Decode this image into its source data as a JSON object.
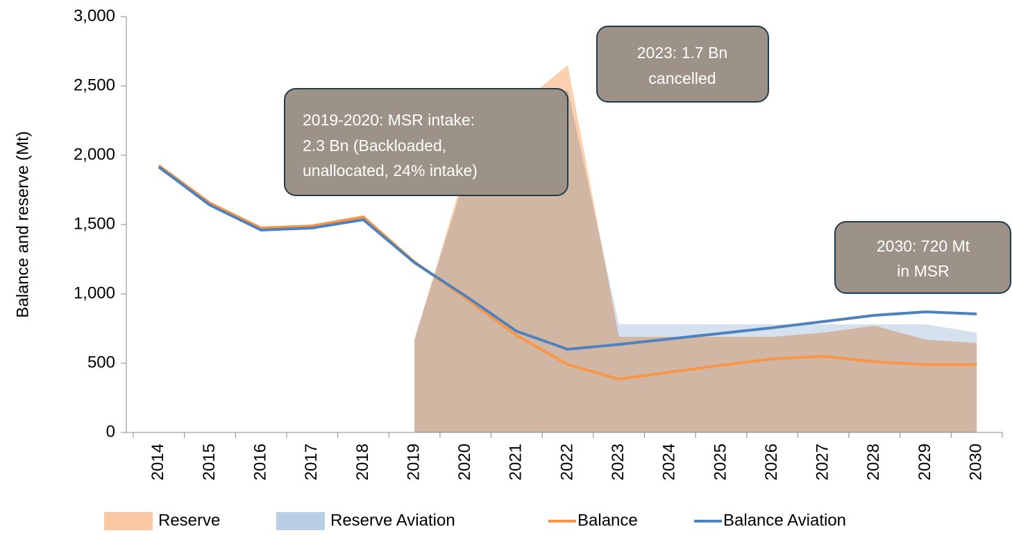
{
  "chart_data": {
    "type": "line",
    "y_label": "Balance and reserve (Mt)",
    "categories": [
      "2014",
      "2015",
      "2016",
      "2017",
      "2018",
      "2019",
      "2020",
      "2021",
      "2022",
      "2023",
      "2024",
      "2025",
      "2026",
      "2027",
      "2028",
      "2029",
      "2030"
    ],
    "ylim": [
      0,
      3000
    ],
    "yticks": [
      0,
      500,
      {
        "value": 1000,
        "label": "1,000"
      },
      {
        "value": 1500,
        "label": "1,500"
      },
      {
        "value": 2000,
        "label": "2,000"
      },
      {
        "value": 2500,
        "label": "2,500"
      },
      {
        "value": 3000,
        "label": "3,000"
      }
    ],
    "series": [
      {
        "name": "Reserve",
        "kind": "area",
        "color": "#fac8a0",
        "values": [
          null,
          null,
          null,
          null,
          null,
          670,
          1900,
          2350,
          2650,
          690,
          690,
          690,
          690,
          720,
          770,
          670,
          645
        ]
      },
      {
        "name": "Reserve Aviation",
        "kind": "area",
        "color": "#b9cde5",
        "values": [
          null,
          null,
          null,
          null,
          null,
          670,
          1850,
          2300,
          2470,
          780,
          780,
          780,
          780,
          780,
          780,
          780,
          720
        ]
      },
      {
        "name": "Balance",
        "kind": "line",
        "color": "#f79646",
        "values": [
          1925,
          1655,
          1475,
          1490,
          1555,
          1230,
          970,
          700,
          490,
          385,
          435,
          485,
          530,
          550,
          510,
          490,
          490
        ]
      },
      {
        "name": "Balance Aviation",
        "kind": "line",
        "color": "#4f81bd",
        "values": [
          1915,
          1640,
          1460,
          1475,
          1535,
          1225,
          985,
          730,
          600,
          635,
          675,
          715,
          755,
          800,
          845,
          870,
          855
        ]
      }
    ],
    "annotations": [
      {
        "lines": [
          "2019-2020: MSR intake:",
          "2.3 Bn (Backloaded,",
          "unallocated, 24% intake)"
        ]
      },
      {
        "lines": [
          "2023: 1.7 Bn",
          "cancelled"
        ]
      },
      {
        "lines": [
          "2030: 720 Mt",
          "in MSR"
        ]
      }
    ]
  }
}
